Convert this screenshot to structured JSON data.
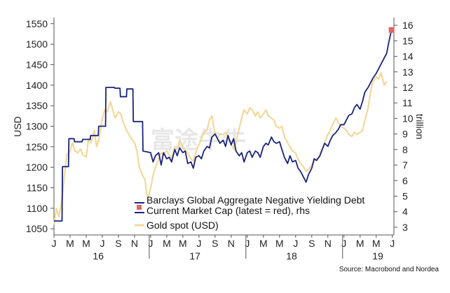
{
  "chart_data": {
    "type": "line",
    "title": "",
    "ylabel_left": "USD",
    "ylabel_right": "trillion",
    "ylim_left": [
      1035,
      1565
    ],
    "ylim_right": [
      2.5,
      16.5
    ],
    "yticks_left": [
      "1050",
      "1100",
      "1150",
      "1200",
      "1250",
      "1300",
      "1350",
      "1400",
      "1450",
      "1500",
      "1550"
    ],
    "yticks_right": [
      "3",
      "4",
      "5",
      "6",
      "7",
      "8",
      "9",
      "10",
      "11",
      "12",
      "13",
      "14",
      "15",
      "16"
    ],
    "month_ticks": [
      "J",
      "M",
      "M",
      "J",
      "S",
      "N",
      "J",
      "M",
      "M",
      "J",
      "S",
      "N",
      "J",
      "M",
      "M",
      "J",
      "S",
      "N",
      "J",
      "M",
      "M",
      "J"
    ],
    "year_labels": [
      "16",
      "17",
      "18",
      "19"
    ],
    "x_range_months": [
      0,
      42.2
    ],
    "series": [
      {
        "name": "Gold spot (USD)",
        "axis": "left",
        "color": "#f2d999",
        "points": [
          [
            0,
            1060
          ],
          [
            0.3,
            1100
          ],
          [
            0.6,
            1080
          ],
          [
            1.0,
            1120
          ],
          [
            1.3,
            1180
          ],
          [
            1.6,
            1230
          ],
          [
            2.0,
            1240
          ],
          [
            2.3,
            1260
          ],
          [
            2.6,
            1240
          ],
          [
            3.0,
            1235
          ],
          [
            3.3,
            1245
          ],
          [
            3.6,
            1230
          ],
          [
            4.0,
            1225
          ],
          [
            4.3,
            1270
          ],
          [
            4.6,
            1260
          ],
          [
            5.0,
            1290
          ],
          [
            5.3,
            1250
          ],
          [
            5.6,
            1270
          ],
          [
            6.0,
            1320
          ],
          [
            6.3,
            1340
          ],
          [
            6.6,
            1335
          ],
          [
            7.0,
            1360
          ],
          [
            7.3,
            1340
          ],
          [
            7.6,
            1320
          ],
          [
            8.0,
            1335
          ],
          [
            8.3,
            1330
          ],
          [
            8.6,
            1310
          ],
          [
            9.0,
            1290
          ],
          [
            9.3,
            1280
          ],
          [
            9.6,
            1270
          ],
          [
            10.0,
            1260
          ],
          [
            10.3,
            1240
          ],
          [
            10.6,
            1200
          ],
          [
            11.0,
            1180
          ],
          [
            11.3,
            1170
          ],
          [
            11.5,
            1135
          ],
          [
            11.7,
            1125
          ],
          [
            12.0,
            1150
          ],
          [
            12.3,
            1180
          ],
          [
            12.6,
            1200
          ],
          [
            13.0,
            1220
          ],
          [
            13.3,
            1235
          ],
          [
            13.6,
            1230
          ],
          [
            14.0,
            1240
          ],
          [
            14.3,
            1230
          ],
          [
            14.6,
            1220
          ],
          [
            15.0,
            1250
          ],
          [
            15.3,
            1245
          ],
          [
            15.6,
            1265
          ],
          [
            16.0,
            1250
          ],
          [
            16.3,
            1240
          ],
          [
            16.6,
            1235
          ],
          [
            17.0,
            1220
          ],
          [
            17.3,
            1215
          ],
          [
            17.6,
            1235
          ],
          [
            18.0,
            1255
          ],
          [
            18.3,
            1270
          ],
          [
            18.6,
            1285
          ],
          [
            19.0,
            1290
          ],
          [
            19.3,
            1315
          ],
          [
            19.6,
            1325
          ],
          [
            20.0,
            1280
          ],
          [
            20.3,
            1270
          ],
          [
            20.6,
            1280
          ],
          [
            21.0,
            1280
          ],
          [
            21.3,
            1285
          ],
          [
            21.6,
            1275
          ],
          [
            22.0,
            1255
          ],
          [
            22.3,
            1245
          ],
          [
            22.6,
            1260
          ],
          [
            23.0,
            1295
          ],
          [
            23.3,
            1320
          ],
          [
            23.6,
            1340
          ],
          [
            24.0,
            1330
          ],
          [
            24.3,
            1345
          ],
          [
            24.6,
            1340
          ],
          [
            25.0,
            1325
          ],
          [
            25.3,
            1335
          ],
          [
            25.6,
            1320
          ],
          [
            26.0,
            1330
          ],
          [
            26.3,
            1340
          ],
          [
            26.6,
            1325
          ],
          [
            27.0,
            1320
          ],
          [
            27.3,
            1315
          ],
          [
            27.6,
            1300
          ],
          [
            28.0,
            1295
          ],
          [
            28.3,
            1300
          ],
          [
            28.6,
            1275
          ],
          [
            29.0,
            1260
          ],
          [
            29.3,
            1250
          ],
          [
            29.6,
            1240
          ],
          [
            30.0,
            1235
          ],
          [
            30.3,
            1220
          ],
          [
            30.6,
            1210
          ],
          [
            31.0,
            1200
          ],
          [
            31.3,
            1190
          ],
          [
            31.6,
            1195
          ],
          [
            32.0,
            1205
          ],
          [
            32.3,
            1215
          ],
          [
            32.6,
            1220
          ],
          [
            33.0,
            1225
          ],
          [
            33.3,
            1245
          ],
          [
            33.6,
            1260
          ],
          [
            34.0,
            1280
          ],
          [
            34.3,
            1290
          ],
          [
            34.6,
            1305
          ],
          [
            35.0,
            1320
          ],
          [
            35.3,
            1310
          ],
          [
            35.6,
            1300
          ],
          [
            36.0,
            1295
          ],
          [
            36.3,
            1290
          ],
          [
            36.6,
            1280
          ],
          [
            37.0,
            1275
          ],
          [
            37.3,
            1285
          ],
          [
            37.6,
            1280
          ],
          [
            38.0,
            1285
          ],
          [
            38.3,
            1290
          ],
          [
            38.6,
            1315
          ],
          [
            39.0,
            1345
          ],
          [
            39.3,
            1385
          ],
          [
            39.6,
            1410
          ],
          [
            40.0,
            1420
          ],
          [
            40.3,
            1415
          ],
          [
            40.6,
            1430
          ],
          [
            41.0,
            1400
          ],
          [
            41.3,
            1410
          ]
        ]
      },
      {
        "name": "Barclays Global Aggregate Negative Yielding Debt Current Market Cap (latest = red), rhs",
        "axis": "right",
        "color": "#1a237e",
        "points": [
          [
            0,
            3.4
          ],
          [
            0.5,
            3.4
          ],
          [
            1.0,
            3.4
          ],
          [
            1.05,
            6.9
          ],
          [
            1.8,
            6.9
          ],
          [
            1.85,
            8.7
          ],
          [
            2.5,
            8.7
          ],
          [
            2.55,
            8.5
          ],
          [
            3.5,
            8.5
          ],
          [
            3.55,
            8.65
          ],
          [
            4.5,
            8.65
          ],
          [
            4.55,
            8.9
          ],
          [
            5.5,
            8.9
          ],
          [
            5.55,
            9.5
          ],
          [
            6.4,
            9.5
          ],
          [
            6.45,
            12.0
          ],
          [
            7.5,
            12.0
          ],
          [
            7.55,
            11.95
          ],
          [
            8.2,
            11.95
          ],
          [
            8.25,
            11.4
          ],
          [
            9.0,
            11.4
          ],
          [
            9.05,
            11.9
          ],
          [
            9.8,
            11.9
          ],
          [
            9.85,
            9.8
          ],
          [
            11.0,
            9.8
          ],
          [
            11.05,
            7.9
          ],
          [
            12.0,
            7.8
          ],
          [
            12.3,
            7.2
          ],
          [
            12.6,
            7.6
          ],
          [
            13.0,
            7.8
          ],
          [
            13.3,
            7.0
          ],
          [
            13.6,
            7.8
          ],
          [
            14.0,
            7.4
          ],
          [
            14.3,
            7.5
          ],
          [
            14.6,
            7.2
          ],
          [
            15.0,
            8.0
          ],
          [
            15.3,
            7.6
          ],
          [
            15.6,
            8.1
          ],
          [
            16.0,
            7.8
          ],
          [
            16.3,
            7.9
          ],
          [
            16.6,
            7.1
          ],
          [
            17.0,
            7.2
          ],
          [
            17.3,
            6.8
          ],
          [
            17.6,
            7.5
          ],
          [
            18.0,
            7.6
          ],
          [
            18.3,
            7.4
          ],
          [
            18.6,
            7.9
          ],
          [
            19.0,
            8.2
          ],
          [
            19.3,
            8.1
          ],
          [
            19.6,
            8.8
          ],
          [
            20.0,
            9.0
          ],
          [
            20.3,
            8.7
          ],
          [
            20.6,
            8.4
          ],
          [
            21.0,
            8.6
          ],
          [
            21.3,
            8.2
          ],
          [
            21.6,
            8.9
          ],
          [
            22.0,
            8.3
          ],
          [
            22.3,
            8.7
          ],
          [
            22.6,
            7.9
          ],
          [
            23.0,
            7.6
          ],
          [
            23.3,
            7.8
          ],
          [
            23.6,
            7.2
          ],
          [
            24.0,
            7.8
          ],
          [
            24.3,
            7.9
          ],
          [
            24.6,
            7.5
          ],
          [
            25.0,
            7.9
          ],
          [
            25.3,
            7.8
          ],
          [
            25.6,
            7.5
          ],
          [
            26.0,
            8.2
          ],
          [
            26.3,
            8.4
          ],
          [
            26.6,
            8.3
          ],
          [
            27.0,
            8.8
          ],
          [
            27.3,
            8.5
          ],
          [
            27.6,
            8.4
          ],
          [
            28.0,
            8.5
          ],
          [
            28.3,
            8.0
          ],
          [
            28.6,
            7.5
          ],
          [
            29.0,
            7.1
          ],
          [
            29.3,
            7.6
          ],
          [
            29.6,
            7.2
          ],
          [
            30.0,
            7.3
          ],
          [
            30.3,
            6.8
          ],
          [
            30.6,
            6.6
          ],
          [
            31.0,
            6.2
          ],
          [
            31.3,
            5.9
          ],
          [
            31.6,
            6.4
          ],
          [
            32.0,
            6.8
          ],
          [
            32.3,
            7.4
          ],
          [
            32.6,
            7.3
          ],
          [
            33.0,
            7.6
          ],
          [
            33.3,
            8.0
          ],
          [
            33.6,
            8.4
          ],
          [
            34.0,
            8.2
          ],
          [
            34.3,
            8.6
          ],
          [
            34.6,
            8.9
          ],
          [
            35.0,
            9.1
          ],
          [
            35.3,
            9.3
          ],
          [
            35.6,
            9.6
          ],
          [
            36.0,
            9.6
          ],
          [
            36.3,
            9.9
          ],
          [
            36.6,
            10.2
          ],
          [
            37.0,
            10.3
          ],
          [
            37.3,
            10.7
          ],
          [
            37.6,
            10.9
          ],
          [
            38.0,
            10.6
          ],
          [
            38.3,
            11.1
          ],
          [
            38.6,
            11.7
          ],
          [
            39.0,
            12.0
          ],
          [
            39.3,
            12.3
          ],
          [
            39.6,
            12.6
          ],
          [
            40.0,
            12.9
          ],
          [
            40.3,
            13.2
          ],
          [
            40.6,
            13.5
          ],
          [
            41.0,
            13.9
          ],
          [
            41.3,
            14.2
          ],
          [
            41.6,
            15.0
          ],
          [
            41.9,
            15.7
          ]
        ]
      }
    ],
    "latest_marker": {
      "series": "Barclays Global Aggregate Negative Yielding Debt Current Market Cap (latest = red), rhs",
      "x": 41.9,
      "y": 15.7,
      "color": "#e06666"
    },
    "legend": [
      "Barclays Global Aggregate Negative Yielding Debt",
      "Current Market Cap (latest = red), rhs",
      "Gold spot (USD)"
    ],
    "legend_position": "bottom-center",
    "source": "Source: Macrobond and Nordea",
    "watermark": "富途牛牛"
  }
}
